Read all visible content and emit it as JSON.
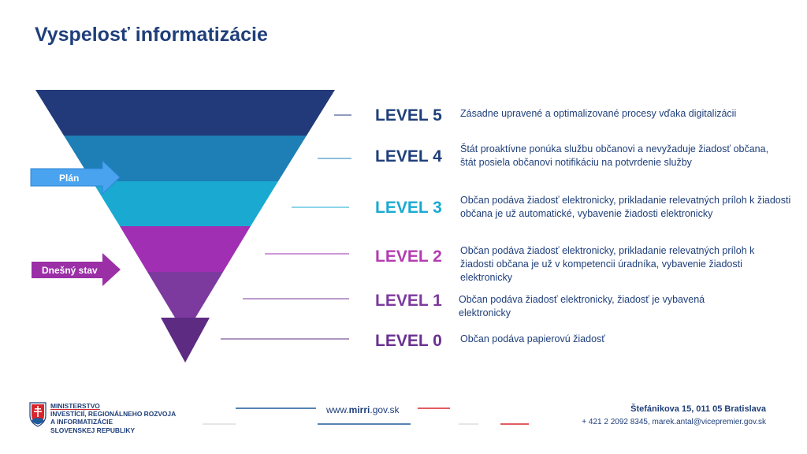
{
  "title": "Vyspelosť informatizácie",
  "colors": {
    "level5": "#223a7a",
    "level4": "#1d7fb5",
    "level3": "#1aaad1",
    "level2": "#a12fb3",
    "level1": "#7c3a9e",
    "level0": "#5d2c82",
    "arrow_plan": "#4aa3ef",
    "arrow_today": "#9a2fa6",
    "brand_blue": "#1f3f7a",
    "brand_red": "#d9262c"
  },
  "arrows": {
    "plan": "Plán",
    "today": "Dnešný stav"
  },
  "levels": [
    {
      "label": "LEVEL 5",
      "color": "#1f3f7a",
      "description": "Zásadne upravené a optimalizované procesy vďaka digitalizácii"
    },
    {
      "label": "LEVEL 4",
      "color": "#1f3f7a",
      "description": "Štát proaktívne ponúka službu občanovi a nevyžaduje žiadosť občana, štát posiela občanovi notifikáciu na potvrdenie  služby"
    },
    {
      "label": "LEVEL 3",
      "color": "#1aaad1",
      "description": "Občan podáva žiadosť elektronicky, prikladanie relevatných príloh k žiadosti občana je už automatické, vybavenie žiadosti elektronicky"
    },
    {
      "label": "LEVEL 2",
      "color": "#b43cb0",
      "description": "Občan podáva žiadosť elektronicky, prikladanie relevatných príloh k žiadosti občana je už v kompetencii úradníka, vybavenie žiadosti elektronicky"
    },
    {
      "label": "LEVEL 1",
      "color": "#7c3a9e",
      "description": "Občan podáva žiadosť elektronicky,  žiadosť je vybavená elektronicky"
    },
    {
      "label": "LEVEL 0",
      "color": "#6a318f",
      "description": "Občan podáva papierovú žiadosť"
    }
  ],
  "footer": {
    "ministry_lines": [
      "MINISTERSTVO",
      "INVESTÍCIÍ, REGIONÁLNEHO ROZVOJA",
      "A INFORMATIZÁCIE",
      "SLOVENSKEJ REPUBLIKY"
    ],
    "website_prefix": "www.",
    "website_bold": "mirri",
    "website_suffix": ".gov.sk",
    "address": "Štefánikova 15, 011 05 Bratislava",
    "contact": "+ 421  2 2092  8345,  marek.antal@vicepremier.gov.sk"
  }
}
